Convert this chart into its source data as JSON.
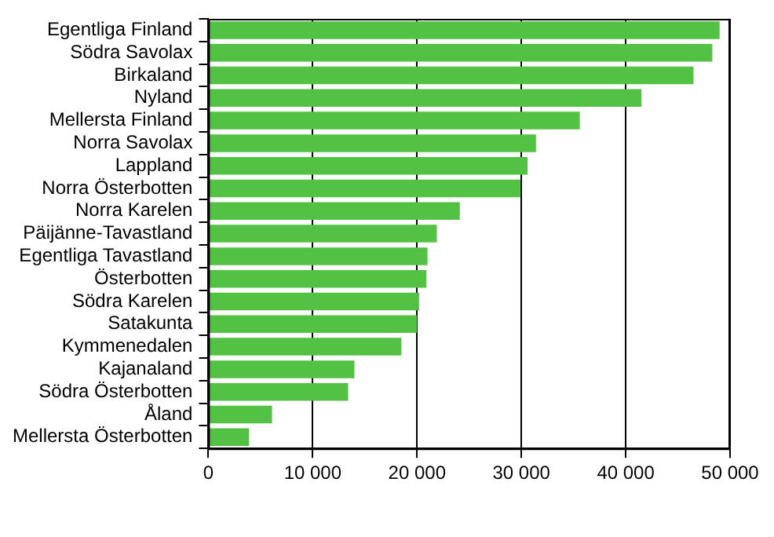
{
  "chart_data": {
    "type": "bar",
    "orientation": "horizontal",
    "categories": [
      "Egentliga Finland",
      "Södra Savolax",
      "Birkaland",
      "Nyland",
      "Mellersta Finland",
      "Norra Savolax",
      "Lappland",
      "Norra Österbotten",
      "Norra Karelen",
      "Päijänne-Tavastland",
      "Egentliga Tavastland",
      "Österbotten",
      "Södra Karelen",
      "Satakunta",
      "Kymmenedalen",
      "Kajanaland",
      "Södra Österbotten",
      "Åland",
      "Mellersta Österbotten"
    ],
    "values": [
      49000,
      48300,
      46500,
      41500,
      35600,
      31400,
      30600,
      29900,
      24100,
      21900,
      21000,
      20900,
      20200,
      20000,
      18500,
      14000,
      13400,
      6100,
      3900
    ],
    "color": "#53c144",
    "xlim": [
      0,
      50000
    ],
    "xticks": [
      0,
      {
        "value": 10000,
        "label": "10 000"
      },
      {
        "value": 20000,
        "label": "20 000"
      },
      {
        "value": 30000,
        "label": "30 000"
      },
      {
        "value": 40000,
        "label": "40 000"
      },
      {
        "value": 50000,
        "label": "50 000"
      }
    ],
    "grid": "x",
    "legend": false
  }
}
